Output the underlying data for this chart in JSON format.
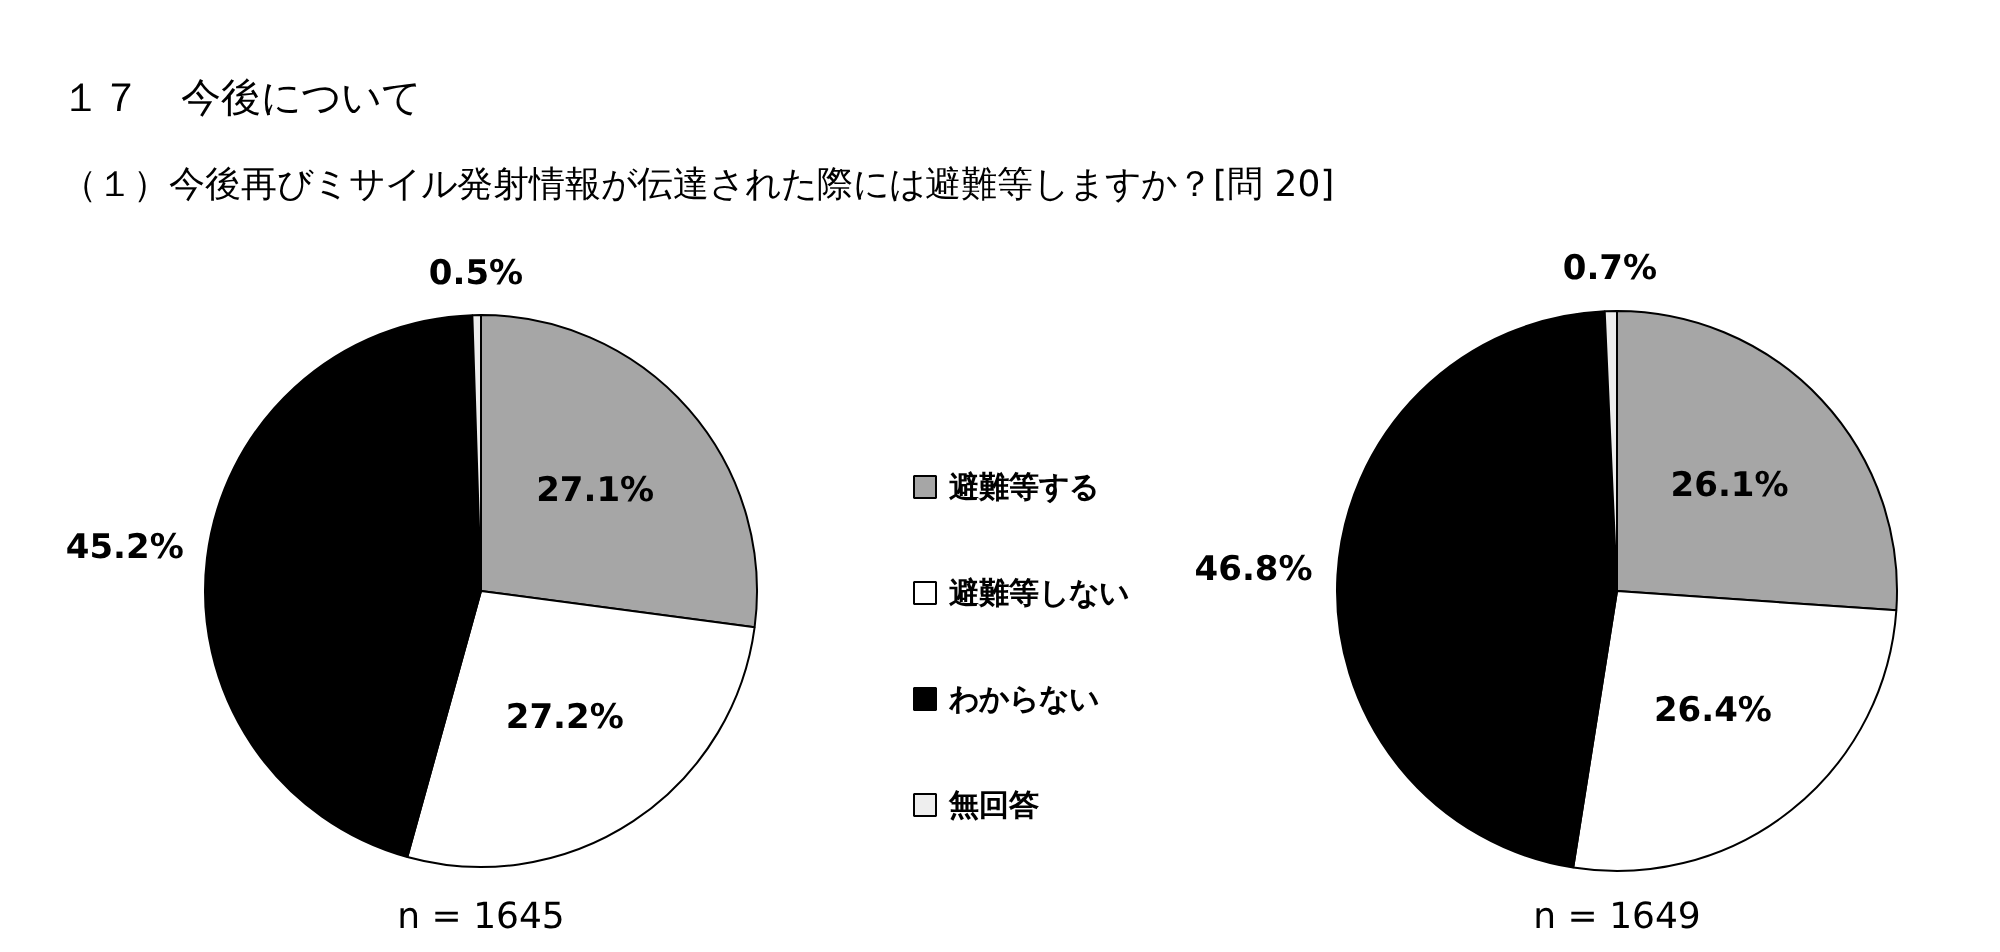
{
  "chart_data": [
    {
      "type": "pie",
      "title": "１７　今後について",
      "subtitle": "（１）今後再びミサイル発射情報が伝達された際には避難等しますか？[問 20]",
      "categories": [
        "避難等する",
        "避難等しない",
        "わからない",
        "無回答"
      ],
      "values": [
        27.1,
        27.2,
        45.2,
        0.5
      ],
      "value_labels": [
        "27.1%",
        "27.2%",
        "45.2%",
        "0.5%"
      ],
      "colors": [
        "#a6a6a6",
        "#ffffff",
        "#000000",
        "#eeeeee"
      ],
      "legend": "right",
      "annotations": [
        "n = 1645"
      ]
    },
    {
      "type": "pie",
      "values": [
        26.1,
        26.4,
        46.8,
        0.7
      ],
      "value_labels": [
        "26.1%",
        "26.4%",
        "46.8%",
        "0.7%"
      ],
      "colors": [
        "#a6a6a6",
        "#ffffff",
        "#000000",
        "#eeeeee"
      ],
      "annotations": [
        "n = 1649"
      ]
    }
  ]
}
